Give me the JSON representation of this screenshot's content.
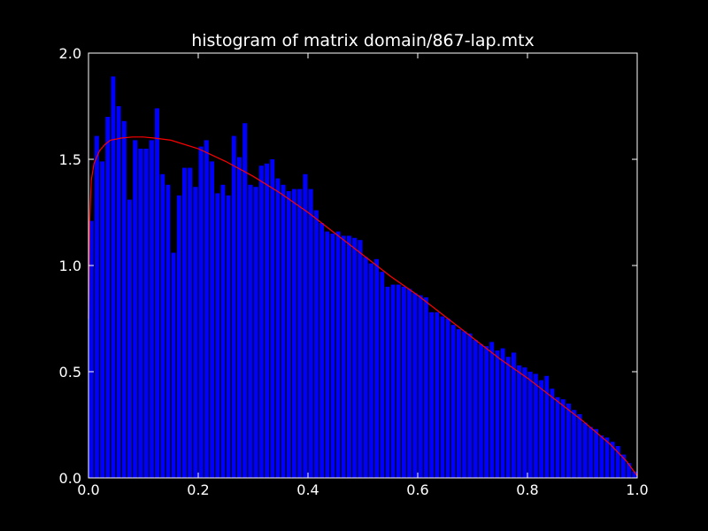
{
  "chart_data": {
    "type": "bar",
    "title": "histogram of matrix domain/867-lap.mtx",
    "xlabel": "",
    "ylabel": "",
    "xlim": [
      0.0,
      1.0
    ],
    "ylim": [
      0.0,
      2.0
    ],
    "xticks": [
      "0.0",
      "0.2",
      "0.4",
      "0.6",
      "0.8",
      "1.0"
    ],
    "yticks": [
      "0.0",
      "0.5",
      "1.0",
      "1.5",
      "2.0"
    ],
    "bin_width": 0.01,
    "bins_x_start": [
      0.0,
      0.01,
      0.02,
      0.03,
      0.04,
      0.05,
      0.06,
      0.07,
      0.08,
      0.09,
      0.1,
      0.11,
      0.12,
      0.13,
      0.14,
      0.15,
      0.16,
      0.17,
      0.18,
      0.19,
      0.2,
      0.21,
      0.22,
      0.23,
      0.24,
      0.25,
      0.26,
      0.27,
      0.28,
      0.29,
      0.3,
      0.31,
      0.32,
      0.33,
      0.34,
      0.35,
      0.36,
      0.37,
      0.38,
      0.39,
      0.4,
      0.41,
      0.42,
      0.43,
      0.44,
      0.45,
      0.46,
      0.47,
      0.48,
      0.49,
      0.5,
      0.51,
      0.52,
      0.53,
      0.54,
      0.55,
      0.56,
      0.57,
      0.58,
      0.59,
      0.6,
      0.61,
      0.62,
      0.63,
      0.64,
      0.65,
      0.66,
      0.67,
      0.68,
      0.69,
      0.7,
      0.71,
      0.72,
      0.73,
      0.74,
      0.75,
      0.76,
      0.77,
      0.78,
      0.79,
      0.8,
      0.81,
      0.82,
      0.83,
      0.84,
      0.85,
      0.86,
      0.87,
      0.88,
      0.89,
      0.9,
      0.91,
      0.92,
      0.93,
      0.94,
      0.95,
      0.96,
      0.97,
      0.98,
      0.99
    ],
    "values": [
      1.21,
      1.61,
      1.49,
      1.7,
      1.89,
      1.75,
      1.68,
      1.31,
      1.59,
      1.55,
      1.55,
      1.59,
      1.74,
      1.43,
      1.38,
      1.06,
      1.33,
      1.46,
      1.46,
      1.37,
      1.56,
      1.59,
      1.49,
      1.34,
      1.38,
      1.33,
      1.61,
      1.51,
      1.67,
      1.38,
      1.37,
      1.47,
      1.48,
      1.5,
      1.41,
      1.38,
      1.35,
      1.36,
      1.36,
      1.43,
      1.36,
      1.26,
      1.2,
      1.16,
      1.15,
      1.16,
      1.14,
      1.14,
      1.13,
      1.12,
      1.04,
      1.01,
      1.03,
      0.97,
      0.9,
      0.91,
      0.91,
      0.9,
      0.89,
      0.87,
      0.86,
      0.85,
      0.78,
      0.78,
      0.76,
      0.75,
      0.72,
      0.7,
      0.69,
      0.68,
      0.65,
      0.63,
      0.62,
      0.64,
      0.6,
      0.61,
      0.57,
      0.59,
      0.53,
      0.52,
      0.5,
      0.49,
      0.46,
      0.48,
      0.42,
      0.38,
      0.37,
      0.35,
      0.32,
      0.3,
      0.26,
      0.24,
      0.23,
      0.2,
      0.19,
      0.17,
      0.15,
      0.11,
      0.07,
      0.03
    ],
    "curve": {
      "x": [
        0.0,
        0.002,
        0.005,
        0.01,
        0.02,
        0.03,
        0.04,
        0.06,
        0.08,
        0.1,
        0.12,
        0.15,
        0.2,
        0.25,
        0.3,
        0.35,
        0.4,
        0.45,
        0.5,
        0.55,
        0.6,
        0.65,
        0.7,
        0.75,
        0.8,
        0.85,
        0.9,
        0.95,
        0.98,
        1.0
      ],
      "y": [
        0.75,
        1.2,
        1.4,
        1.48,
        1.54,
        1.57,
        1.59,
        1.6,
        1.605,
        1.605,
        1.6,
        1.59,
        1.55,
        1.49,
        1.42,
        1.34,
        1.25,
        1.15,
        1.05,
        0.95,
        0.86,
        0.76,
        0.66,
        0.56,
        0.47,
        0.37,
        0.27,
        0.16,
        0.08,
        0.01
      ]
    },
    "bar_color": "#0000ff",
    "curve_color": "#ff0000",
    "background_color": "#000000",
    "axis_color": "#ffffff",
    "grid": false,
    "legend": "none"
  }
}
